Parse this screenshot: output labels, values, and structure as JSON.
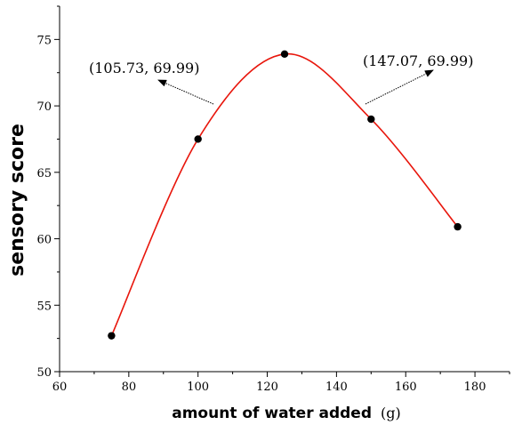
{
  "chart_data": {
    "type": "line",
    "xlabel": "amount of water added",
    "xlabel_unit": "(g)",
    "ylabel": "sensory score",
    "xlim": [
      60,
      190
    ],
    "ylim": [
      50,
      77.5
    ],
    "xticks": [
      60,
      80,
      100,
      120,
      140,
      160,
      180
    ],
    "yticks": [
      50,
      55,
      60,
      65,
      70,
      75
    ],
    "series": [
      {
        "color": "#e8160c",
        "marker_color": "#000000",
        "points": [
          {
            "x": 75,
            "y": 52.7
          },
          {
            "x": 100,
            "y": 67.5
          },
          {
            "x": 125,
            "y": 73.9
          },
          {
            "x": 150,
            "y": 69.0
          },
          {
            "x": 175,
            "y": 60.9
          }
        ]
      }
    ],
    "annotations": [
      {
        "text": "(105.73,  69.99)",
        "x": 105.73,
        "y": 69.99
      },
      {
        "text": "(147.07,  69.99)",
        "x": 147.07,
        "y": 69.99
      }
    ],
    "grid": false,
    "legend": "none"
  }
}
